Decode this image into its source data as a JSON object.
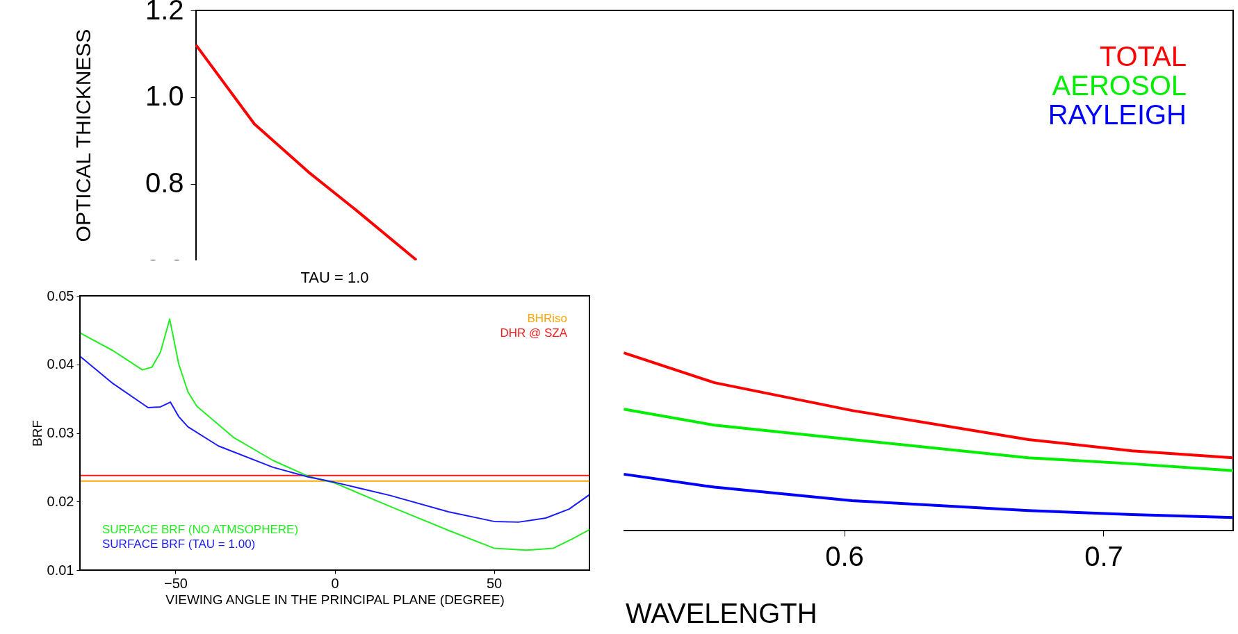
{
  "chart_data": [
    {
      "type": "line",
      "xlabel": "WAVELENGTH",
      "ylabel": "OPTICAL THICKNESS",
      "xlim": [
        0.35,
        0.75
      ],
      "ylim": [
        0,
        1.2
      ],
      "xticks": [
        0.6,
        0.7
      ],
      "yticks": [
        0.6,
        0.8,
        {
          "value": 1.0,
          "label": "1.0"
        },
        1.2
      ],
      "legend": "top right",
      "grid": false,
      "series": [
        {
          "name": "TOTAL",
          "color": "#ff0000",
          "x": [
            0.35,
            0.3725,
            0.394,
            0.412,
            0.435,
            0.47,
            0.515,
            0.55,
            0.603,
            0.671,
            0.711,
            0.75
          ],
          "values": [
            1.12,
            0.938,
            0.824,
            0.738,
            0.624,
            null,
            0.41,
            0.341,
            0.277,
            0.21,
            0.184,
            0.168
          ]
        },
        {
          "name": "AEROSOL",
          "color": "#00ee00",
          "x": [
            0.515,
            0.55,
            0.603,
            0.671,
            0.711,
            0.75
          ],
          "values": [
            0.28,
            0.243,
            0.21,
            0.168,
            0.154,
            0.138
          ]
        },
        {
          "name": "RAYLEIGH",
          "color": "#0000ff",
          "x": [
            0.515,
            0.55,
            0.603,
            0.671,
            0.711,
            0.75
          ],
          "values": [
            0.13,
            0.1,
            0.069,
            0.046,
            0.037,
            0.03
          ]
        }
      ]
    },
    {
      "type": "line",
      "title": "TAU = 1.0",
      "xlabel": "VIEWING ANGLE  IN THE PRINCIPAL PLANE (DEGREE)",
      "ylabel": "BRF",
      "xlim": [
        -80,
        80
      ],
      "ylim": [
        0.01,
        0.05
      ],
      "xticks": [
        -50,
        0,
        50
      ],
      "yticks": [
        0.01,
        0.02,
        0.03,
        0.04,
        0.05
      ],
      "legend": "left",
      "grid": false,
      "ref_lines": [
        {
          "axis": "y",
          "value": 0.023,
          "label": "BHRiso",
          "color": "#ffa500"
        },
        {
          "axis": "y",
          "value": 0.0238,
          "label": "DHR @ SZA",
          "color": "#ff1a1a"
        }
      ],
      "series": [
        {
          "name": "SURFACE BRF (NO ATMSOPHERE)",
          "color": "#22ee22",
          "x": [
            -80,
            -69.6,
            -60.4,
            -57.4,
            -54.7,
            -51.8,
            -49,
            -46.1,
            -43.3,
            -31.6,
            -19.4,
            -8.4,
            0,
            17.3,
            35.7,
            50,
            60.2,
            68.7,
            74.8,
            80
          ],
          "values": [
            0.0446,
            0.042,
            0.0392,
            0.0396,
            0.0418,
            0.0466,
            0.0401,
            0.036,
            0.0339,
            0.0293,
            0.026,
            0.0237,
            0.0227,
            0.0193,
            0.0158,
            0.0132,
            0.0129,
            0.0132,
            0.0146,
            0.0159
          ]
        },
        {
          "name": "SURFACE BRF (TAU = 1.00)",
          "color": "#1a1aff",
          "x": [
            -80,
            -69.6,
            -58.6,
            -54.7,
            -51.6,
            -49,
            -46.1,
            -36.5,
            -19.4,
            -8.4,
            0,
            17.3,
            35.7,
            50,
            57.7,
            66.3,
            73.6,
            80
          ],
          "values": [
            0.0412,
            0.0372,
            0.0337,
            0.0338,
            0.0345,
            0.0324,
            0.0309,
            0.0281,
            0.025,
            0.0236,
            0.0228,
            0.0209,
            0.0185,
            0.0171,
            0.017,
            0.0176,
            0.0189,
            0.021
          ]
        }
      ]
    }
  ]
}
